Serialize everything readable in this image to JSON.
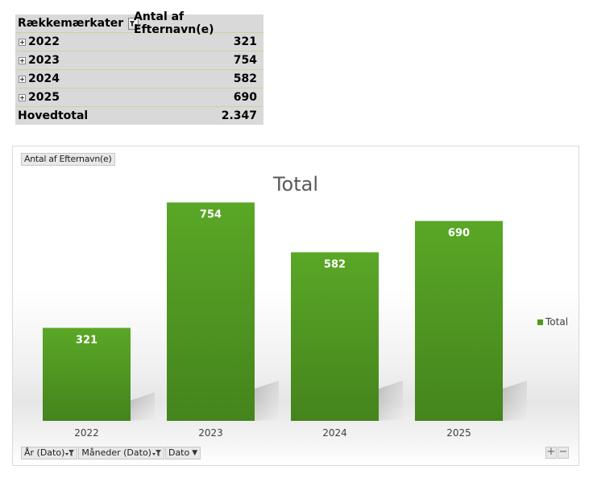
{
  "pivot": {
    "header": {
      "row_labels": "Rækkemærkater",
      "value_header": "Antal af Efternavn(e)"
    },
    "rows": [
      {
        "label": "2022",
        "value": "321"
      },
      {
        "label": "2023",
        "value": "754"
      },
      {
        "label": "2024",
        "value": "582"
      },
      {
        "label": "2025",
        "value": "690"
      }
    ],
    "total": {
      "label": "Hovedtotal",
      "value": "2.347"
    }
  },
  "chart": {
    "value_field_button": "Antal af Efternavn(e)",
    "title": "Total",
    "legend": "Total",
    "bar_color": "#4f9a22",
    "axis_fields": [
      {
        "label": "År (Dato)",
        "icon": "filter-dropdown-icon"
      },
      {
        "label": "Måneder (Dato)",
        "icon": "filter-dropdown-icon"
      },
      {
        "label": "Dato",
        "icon": "dropdown-arrow-icon"
      }
    ],
    "zoom": {
      "expand": "+",
      "collapse": "−"
    }
  },
  "chart_data": {
    "type": "bar",
    "title": "Total",
    "categories": [
      "2022",
      "2023",
      "2024",
      "2025"
    ],
    "series": [
      {
        "name": "Total",
        "values": [
          321,
          754,
          582,
          690
        ]
      }
    ],
    "data_labels": [
      "321",
      "754",
      "582",
      "690"
    ],
    "xlabel": "",
    "ylabel": "",
    "ylim": [
      0,
      800
    ],
    "grid": false,
    "legend_position": "right"
  }
}
